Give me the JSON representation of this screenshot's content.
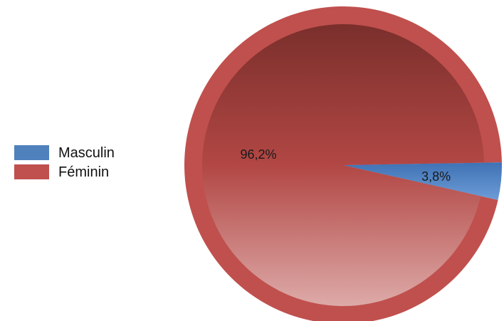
{
  "chart_data": {
    "type": "pie",
    "slices": [
      {
        "name": "Masculin",
        "value": 3.8,
        "label": "3,8%",
        "color": "#4f81bd"
      },
      {
        "name": "Féminin",
        "value": 96.2,
        "label": "96,2%",
        "color": "#c0504d"
      }
    ],
    "legend_position": "left"
  }
}
